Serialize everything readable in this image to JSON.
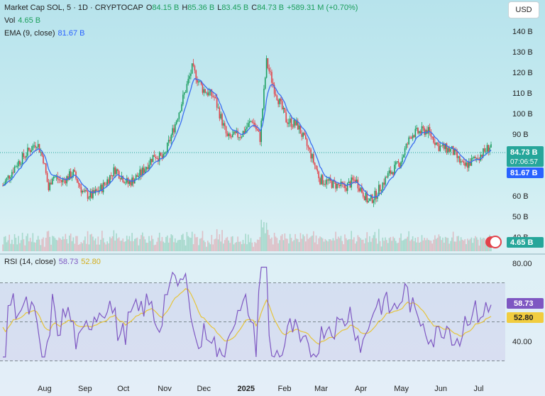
{
  "header": {
    "symbol": "Market Cap SOL, 5 · 1D · CRYPTOCAP",
    "o_label": "O",
    "o_value": "84.15 B",
    "h_label": "H",
    "h_value": "85.36 B",
    "l_label": "L",
    "l_value": "83.45 B",
    "c_label": "C",
    "c_value": "84.73 B",
    "change": "+589.31 M (+0.70%)",
    "vol_label": "Vol",
    "vol_value": "4.65 B",
    "ema_label": "EMA (9, close)",
    "ema_value": "81.67 B",
    "currency": "USD"
  },
  "rsi_legend": {
    "label": "RSI (14, close)",
    "value": "58.73",
    "ma_value": "52.80"
  },
  "badges": {
    "price": "84.73 B",
    "countdown": "07:06:57",
    "ema": "81.67 B",
    "vol": "4.65 B",
    "rsi": "58.73",
    "rsi_ma": "52.80"
  },
  "colors": {
    "up": "#1e9f62",
    "down": "#e2424a",
    "ema": "#3a6df0",
    "rsi": "#7e57c2",
    "rsi_ma": "#e6c43b",
    "price_line": "#26a69a"
  },
  "chart_data": [
    {
      "type": "candlestick",
      "title": "Market Cap SOL",
      "ylabel": "USD (B)",
      "yticks": [
        "140 B",
        "130 B",
        "120 B",
        "110 B",
        "100 B",
        "90 B",
        "70 B",
        "60 B",
        "50 B",
        "40 B"
      ],
      "xticks": [
        "Aug",
        "Sep",
        "Oct",
        "Nov",
        "Dec",
        "2025",
        "Feb",
        "Mar",
        "Apr",
        "May",
        "Jun",
        "Jul"
      ],
      "ylim": [
        40,
        150
      ],
      "grid": false,
      "close_series": [
        {
          "x": "2024-07-01",
          "y": 65
        },
        {
          "x": "2024-07-11",
          "y": 75
        },
        {
          "x": "2024-07-21",
          "y": 82
        },
        {
          "x": "2024-07-27",
          "y": 86
        },
        {
          "x": "2024-08-01",
          "y": 78
        },
        {
          "x": "2024-08-05",
          "y": 63
        },
        {
          "x": "2024-08-08",
          "y": 70
        },
        {
          "x": "2024-08-15",
          "y": 67
        },
        {
          "x": "2024-08-24",
          "y": 71
        },
        {
          "x": "2024-09-01",
          "y": 61
        },
        {
          "x": "2024-09-07",
          "y": 60
        },
        {
          "x": "2024-09-15",
          "y": 64
        },
        {
          "x": "2024-09-25",
          "y": 73
        },
        {
          "x": "2024-10-05",
          "y": 66
        },
        {
          "x": "2024-10-15",
          "y": 71
        },
        {
          "x": "2024-10-25",
          "y": 80
        },
        {
          "x": "2024-11-01",
          "y": 78
        },
        {
          "x": "2024-11-10",
          "y": 95
        },
        {
          "x": "2024-11-23",
          "y": 122
        },
        {
          "x": "2024-12-01",
          "y": 112
        },
        {
          "x": "2024-12-10",
          "y": 108
        },
        {
          "x": "2024-12-20",
          "y": 88
        },
        {
          "x": "2024-12-31",
          "y": 90
        },
        {
          "x": "2025-01-08",
          "y": 97
        },
        {
          "x": "2025-01-14",
          "y": 88
        },
        {
          "x": "2025-01-19",
          "y": 125
        },
        {
          "x": "2025-01-25",
          "y": 112
        },
        {
          "x": "2025-02-03",
          "y": 97
        },
        {
          "x": "2025-02-12",
          "y": 94
        },
        {
          "x": "2025-02-22",
          "y": 80
        },
        {
          "x": "2025-03-01",
          "y": 68
        },
        {
          "x": "2025-03-10",
          "y": 66
        },
        {
          "x": "2025-03-20",
          "y": 64
        },
        {
          "x": "2025-03-28",
          "y": 68
        },
        {
          "x": "2025-04-07",
          "y": 57
        },
        {
          "x": "2025-04-12",
          "y": 60
        },
        {
          "x": "2025-04-22",
          "y": 70
        },
        {
          "x": "2025-05-01",
          "y": 76
        },
        {
          "x": "2025-05-10",
          "y": 90
        },
        {
          "x": "2025-05-22",
          "y": 92
        },
        {
          "x": "2025-05-31",
          "y": 84
        },
        {
          "x": "2025-06-10",
          "y": 82
        },
        {
          "x": "2025-06-19",
          "y": 74
        },
        {
          "x": "2025-06-28",
          "y": 78
        },
        {
          "x": "2025-07-04",
          "y": 81
        },
        {
          "x": "2025-07-10",
          "y": 84.73
        }
      ],
      "last_close": 84.73,
      "ema": 81.67,
      "volume_last": "4.65 B"
    },
    {
      "type": "line",
      "title": "RSI (14, close)",
      "yticks": [
        "80.00",
        "40.00"
      ],
      "ylim": [
        30,
        80
      ],
      "bands": [
        70,
        50,
        30
      ],
      "series": [
        {
          "name": "RSI",
          "last": 58.73
        },
        {
          "name": "RSI MA",
          "last": 52.8
        }
      ]
    }
  ]
}
